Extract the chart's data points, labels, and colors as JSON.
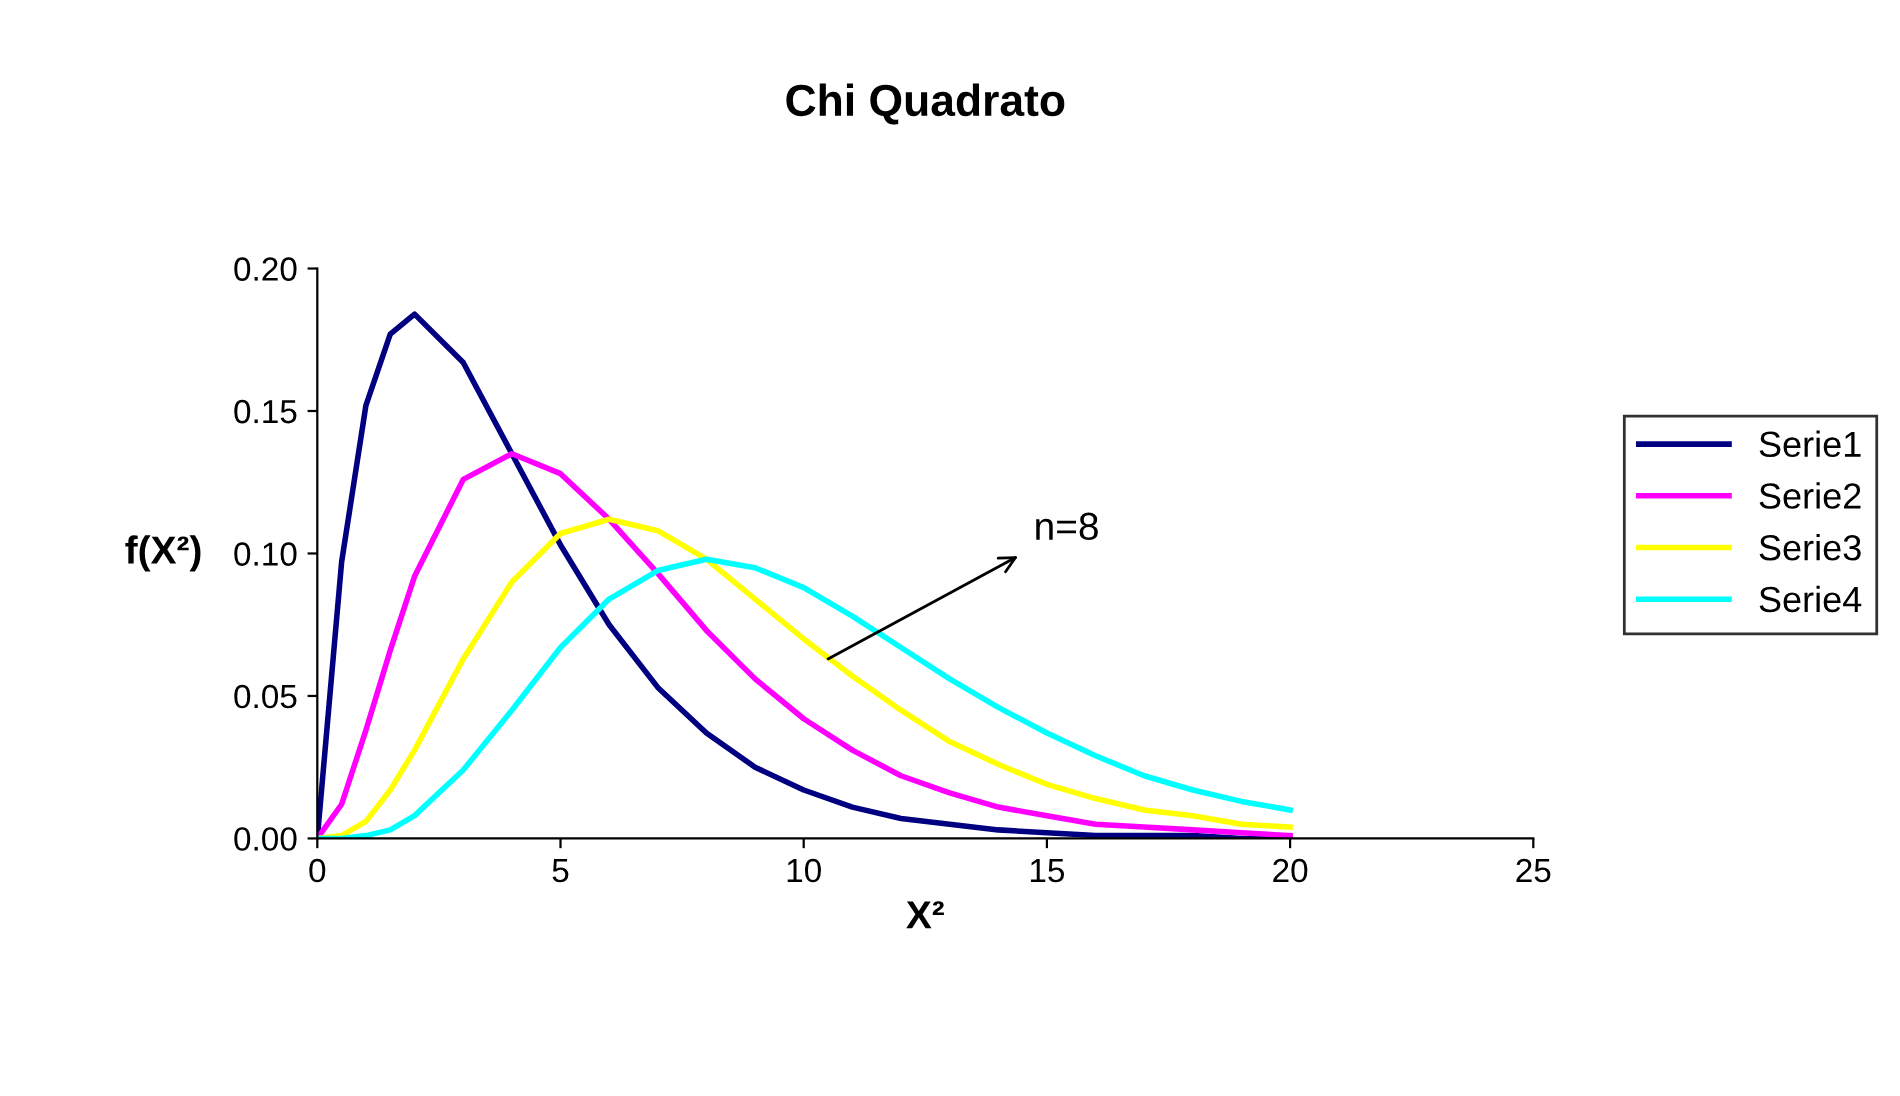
{
  "chart_data": {
    "type": "line",
    "title": "Chi Quadrato",
    "xlabel": "X²",
    "ylabel": "f(X²)",
    "x": [
      0,
      0.5,
      1,
      1.5,
      2,
      3,
      4,
      5,
      6,
      7,
      8,
      9,
      10,
      11,
      12,
      13,
      14,
      15,
      16,
      17,
      18,
      19,
      20
    ],
    "series": [
      {
        "name": "Serie1",
        "color": "#000080",
        "values": [
          0,
          0.097,
          0.152,
          0.177,
          0.184,
          0.167,
          0.135,
          0.103,
          0.075,
          0.053,
          0.037,
          0.025,
          0.017,
          0.011,
          0.007,
          0.005,
          0.003,
          0.002,
          0.001,
          0.001,
          0.001,
          0,
          0
        ]
      },
      {
        "name": "Serie2",
        "color": "#ff00ff",
        "values": [
          0,
          0.012,
          0.038,
          0.066,
          0.092,
          0.126,
          0.135,
          0.128,
          0.112,
          0.093,
          0.073,
          0.056,
          0.042,
          0.031,
          0.022,
          0.016,
          0.011,
          0.008,
          0.005,
          0.004,
          0.003,
          0.002,
          0.001
        ]
      },
      {
        "name": "Serie3",
        "color": "#ffff00",
        "values": [
          0,
          0.001,
          0.006,
          0.017,
          0.031,
          0.063,
          0.09,
          0.107,
          0.112,
          0.108,
          0.098,
          0.084,
          0.07,
          0.057,
          0.045,
          0.034,
          0.026,
          0.019,
          0.014,
          0.01,
          0.008,
          0.005,
          0.004
        ]
      },
      {
        "name": "Serie4",
        "color": "#00ffff",
        "values": [
          0,
          0,
          0.001,
          0.003,
          0.008,
          0.024,
          0.045,
          0.067,
          0.084,
          0.094,
          0.098,
          0.095,
          0.088,
          0.078,
          0.067,
          0.056,
          0.046,
          0.037,
          0.029,
          0.022,
          0.017,
          0.013,
          0.01
        ]
      }
    ],
    "xlim": [
      0,
      25
    ],
    "xticks": [
      0,
      5,
      10,
      15,
      20,
      25
    ],
    "ylim": [
      0,
      0.2
    ],
    "yticks": [
      {
        "value": 0,
        "label": "0.00"
      },
      {
        "value": 0.05,
        "label": "0.05"
      },
      {
        "value": 0.1,
        "label": "0.10"
      },
      {
        "value": 0.15,
        "label": "0.15"
      },
      {
        "value": 0.2,
        "label": "0.20"
      }
    ],
    "annotations": [
      {
        "text": "n=8",
        "x": 10.5,
        "y": 0.063
      }
    ],
    "legend": "right",
    "grid": false,
    "marker": "none",
    "line_style": "solid"
  }
}
